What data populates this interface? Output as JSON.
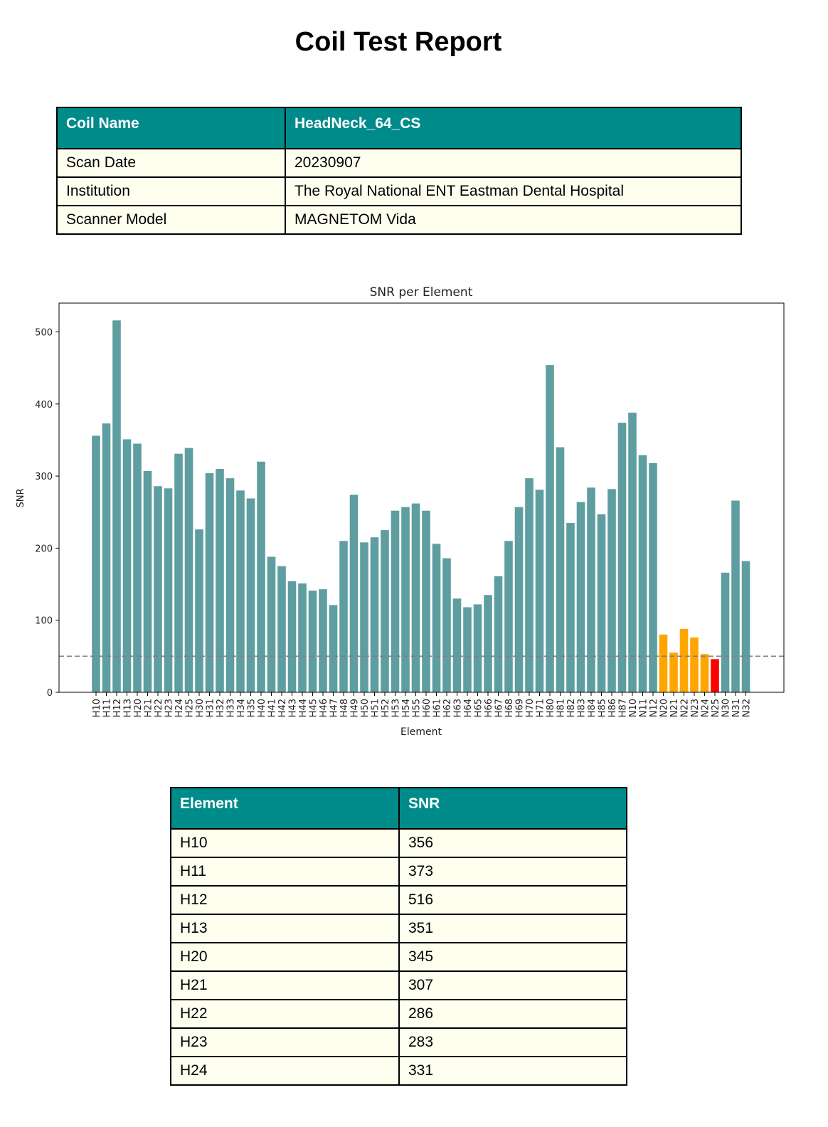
{
  "report": {
    "title": "Coil Test Report"
  },
  "meta": {
    "header": [
      "Coil Name",
      "HeadNeck_64_CS"
    ],
    "rows": [
      [
        "Scan Date",
        "20230907"
      ],
      [
        "Institution",
        "The Royal National ENT Eastman Dental Hospital"
      ],
      [
        "Scanner Model",
        "MAGNETOM Vida"
      ]
    ]
  },
  "chart_data": {
    "type": "bar",
    "title": "SNR per Element",
    "xlabel": "Element",
    "ylabel": "SNR",
    "ylim": [
      0,
      540
    ],
    "yticks": [
      0,
      100,
      200,
      300,
      400,
      500
    ],
    "threshold": 50,
    "categories": [
      "H10",
      "H11",
      "H12",
      "H13",
      "H20",
      "H21",
      "H22",
      "H23",
      "H24",
      "H25",
      "H30",
      "H31",
      "H32",
      "H33",
      "H34",
      "H35",
      "H40",
      "H41",
      "H42",
      "H43",
      "H44",
      "H45",
      "H46",
      "H47",
      "H48",
      "H49",
      "H50",
      "H51",
      "H52",
      "H53",
      "H54",
      "H55",
      "H60",
      "H61",
      "H62",
      "H63",
      "H64",
      "H65",
      "H66",
      "H67",
      "H68",
      "H69",
      "H70",
      "H71",
      "H80",
      "H81",
      "H82",
      "H83",
      "H84",
      "H85",
      "H86",
      "H87",
      "N10",
      "N11",
      "N12",
      "N20",
      "N21",
      "N22",
      "N23",
      "N24",
      "N25",
      "N30",
      "N31",
      "N32"
    ],
    "values": [
      356,
      373,
      516,
      351,
      345,
      307,
      286,
      283,
      331,
      339,
      226,
      304,
      310,
      297,
      280,
      269,
      320,
      188,
      175,
      154,
      151,
      141,
      143,
      121,
      210,
      274,
      208,
      215,
      225,
      252,
      257,
      262,
      252,
      206,
      186,
      130,
      118,
      122,
      135,
      161,
      210,
      257,
      297,
      281,
      454,
      340,
      235,
      264,
      284,
      247,
      282,
      374,
      388,
      329,
      318,
      80,
      55,
      88,
      76,
      53,
      46,
      166,
      266,
      182
    ],
    "colors": {
      "normal": "#5f9ea0",
      "warning": "#ffa500",
      "fail": "#ff0000",
      "threshold_line": "#808080"
    },
    "bar_status": [
      "normal",
      "normal",
      "normal",
      "normal",
      "normal",
      "normal",
      "normal",
      "normal",
      "normal",
      "normal",
      "normal",
      "normal",
      "normal",
      "normal",
      "normal",
      "normal",
      "normal",
      "normal",
      "normal",
      "normal",
      "normal",
      "normal",
      "normal",
      "normal",
      "normal",
      "normal",
      "normal",
      "normal",
      "normal",
      "normal",
      "normal",
      "normal",
      "normal",
      "normal",
      "normal",
      "normal",
      "normal",
      "normal",
      "normal",
      "normal",
      "normal",
      "normal",
      "normal",
      "normal",
      "normal",
      "normal",
      "normal",
      "normal",
      "normal",
      "normal",
      "normal",
      "normal",
      "normal",
      "normal",
      "normal",
      "warning",
      "warning",
      "warning",
      "warning",
      "warning",
      "fail",
      "normal",
      "normal",
      "normal"
    ]
  },
  "snr_table": {
    "header": [
      "Element",
      "SNR"
    ],
    "rows": [
      [
        "H10",
        "356"
      ],
      [
        "H11",
        "373"
      ],
      [
        "H12",
        "516"
      ],
      [
        "H13",
        "351"
      ],
      [
        "H20",
        "345"
      ],
      [
        "H21",
        "307"
      ],
      [
        "H22",
        "286"
      ],
      [
        "H23",
        "283"
      ],
      [
        "H24",
        "331"
      ]
    ]
  },
  "colors": {
    "header_bg": "#008b8b",
    "cell_bg": "#fffff0"
  }
}
